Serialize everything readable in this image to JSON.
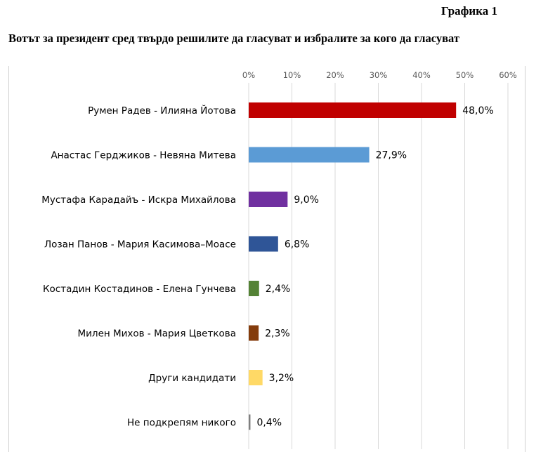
{
  "chart_data": {
    "type": "bar",
    "orientation": "horizontal",
    "graph_label": "Графика 1",
    "title": "Вотът за президент сред твърдо решилите да гласуват и избралите за кого да гласуват",
    "xlabel": "",
    "ylabel": "",
    "xlim": [
      0,
      60
    ],
    "ticks": [
      "0%",
      "10%",
      "20%",
      "30%",
      "40%",
      "50%",
      "60%"
    ],
    "tick_values": [
      0,
      10,
      20,
      30,
      40,
      50,
      60
    ],
    "grid": true,
    "axis_position": "top",
    "legend": "none",
    "categories": [
      "Румен Радев - Илияна Йотова",
      "Анастас Герджиков - Невяна Митева",
      "Мустафа Карадайъ - Искра Михайлова",
      "Лозан Панов - Мария Касимова–Моасе",
      "Костадин Костадинов - Елена Гунчева",
      "Милен Михов - Мария Цветкова",
      "Други кандидати",
      "Не подкрепям никого"
    ],
    "values": [
      48.0,
      27.9,
      9.0,
      6.8,
      2.4,
      2.3,
      3.2,
      0.4
    ],
    "data_labels": [
      "48,0%",
      "27,9%",
      "9,0%",
      "6,8%",
      "2,4%",
      "2,3%",
      "3,2%",
      "0,4%"
    ],
    "colors": [
      "#C00000",
      "#5B9BD5",
      "#7030A0",
      "#2F5597",
      "#548235",
      "#843C0C",
      "#FFD966",
      "#7F7F7F"
    ]
  }
}
